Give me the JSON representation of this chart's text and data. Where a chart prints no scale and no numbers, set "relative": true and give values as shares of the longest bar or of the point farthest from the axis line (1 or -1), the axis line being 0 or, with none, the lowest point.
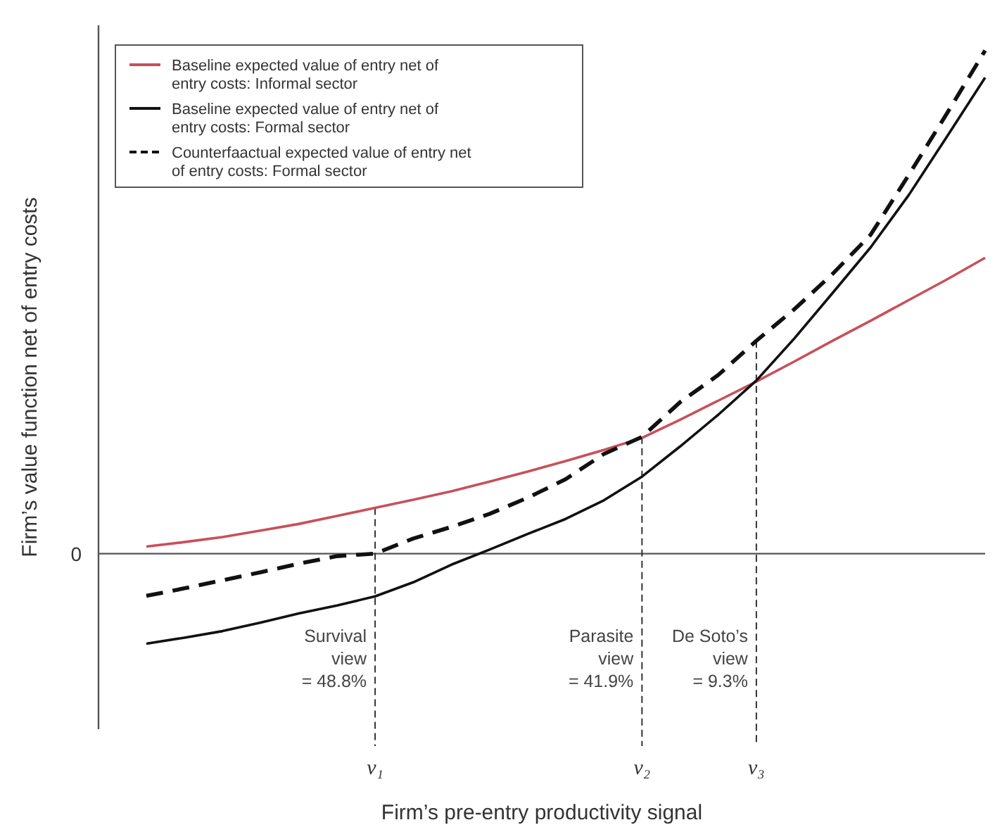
{
  "chart_data": {
    "type": "line",
    "relative": true,
    "xlabel": "Firm’s pre-entry productivity signal",
    "ylabel": "Firm’s value function net of entry costs",
    "legend": "top left",
    "categories": [
      null,
      null,
      null,
      null,
      null,
      null,
      "ν₁",
      null,
      null,
      null,
      null,
      null,
      null,
      "ν₂",
      null,
      null,
      "ν₃",
      null,
      null,
      null,
      null,
      null,
      null
    ],
    "ref_lines": [
      {
        "axis": "y",
        "value": 0,
        "label": "0",
        "color": "#555555",
        "line_style": "solid"
      },
      {
        "axis": "x",
        "value": "ν₁",
        "label": null,
        "color": "#333333",
        "line_style": "dashed"
      },
      {
        "axis": "x",
        "value": "ν₂",
        "label": null,
        "color": "#333333",
        "line_style": "dashed"
      },
      {
        "axis": "x",
        "value": "ν₃",
        "label": null,
        "color": "#333333",
        "line_style": "dashed"
      }
    ],
    "annotations": [
      "Survival\nview\n= 48.8%",
      "Parasite\nview\n= 41.9%",
      "De Soto’s\nview\n= 9.3%"
    ],
    "series": [
      {
        "name": "Baseline expected value of entry net of entry costs: Informal sector",
        "color": "#c8505a",
        "line_style": "solid",
        "values": [
          0.014,
          0.023,
          0.033,
          0.046,
          0.059,
          0.075,
          0.091,
          0.107,
          0.124,
          0.143,
          0.163,
          0.184,
          0.206,
          0.23,
          0.266,
          0.304,
          0.342,
          0.382,
          0.423,
          0.463,
          0.504,
          0.545,
          0.588
        ]
      },
      {
        "name": "Baseline expected value of entry net of entry costs: Formal sector",
        "color": "#111111",
        "line_style": "solid",
        "values": [
          -0.179,
          -0.167,
          -0.154,
          -0.137,
          -0.119,
          -0.103,
          -0.085,
          -0.057,
          -0.022,
          0.008,
          0.039,
          0.069,
          0.106,
          0.153,
          0.213,
          0.276,
          0.344,
          0.428,
          0.518,
          0.609,
          0.713,
          0.829,
          0.946
        ]
      },
      {
        "name": "Counterfaactual expected value of entry net of entry costs: Formal sector",
        "color": "#111111",
        "line_style": "dashed",
        "values": [
          -0.084,
          -0.069,
          -0.053,
          -0.037,
          -0.02,
          -0.005,
          0,
          0.03,
          0.053,
          0.079,
          0.111,
          0.148,
          0.198,
          0.232,
          0.301,
          0.355,
          0.423,
          0.486,
          0.556,
          0.634,
          0.753,
          0.875,
          1
        ]
      }
    ]
  }
}
